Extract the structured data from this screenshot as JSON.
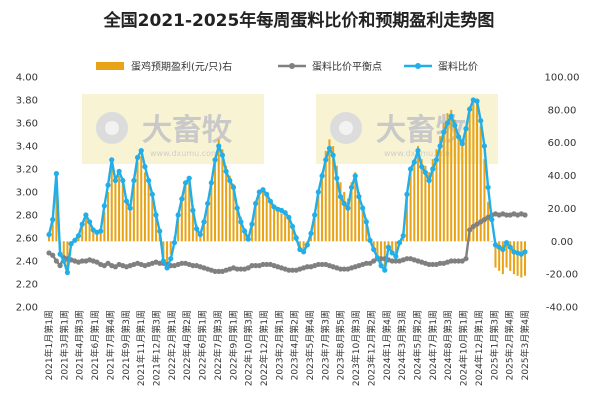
{
  "chart_data": {
    "type": "bar+line",
    "title": "全国2021-2025年每周蛋料比价和预期盈利走势图",
    "watermark": {
      "brand": "大畜牧",
      "site": "www.dxumu.com"
    },
    "colors": {
      "profit": "#E8A317",
      "breakeven": "#808080",
      "ratio": "#22AEE8"
    },
    "legend": [
      {
        "key": "profit",
        "label": "蛋鸡预期盈利(元/只)右",
        "marker": "bar"
      },
      {
        "key": "breakeven",
        "label": "蛋料比价平衡点",
        "marker": "line-dot"
      },
      {
        "key": "ratio",
        "label": "蛋料比价",
        "marker": "line-dot"
      }
    ],
    "y_left": {
      "min": 2.0,
      "max": 4.0,
      "step": 0.2,
      "ticks": [
        "2.00",
        "2.20",
        "2.40",
        "2.60",
        "2.80",
        "3.00",
        "3.20",
        "3.40",
        "3.60",
        "3.80",
        "4.00"
      ]
    },
    "y_right": {
      "min": -40,
      "max": 100,
      "step": 20,
      "ticks": [
        "-40.00",
        "-20.00",
        "0.00",
        "20.00",
        "40.00",
        "60.00",
        "80.00",
        "100.00"
      ]
    },
    "x_labels": [
      "2021年1月第1周",
      "2021年3月第1周",
      "2021年4月第3周",
      "2021年6月第1周",
      "2021年7月第4周",
      "2021年9月第3周",
      "2021年11月第1周",
      "2021年12月第3周",
      "2022年2月第1周",
      "2022年4月第2周",
      "2022年6月第1周",
      "2022年7月第3周",
      "2022年9月第1周",
      "2022年10月第3周",
      "2022年12月第1周",
      "2023年2月第1周",
      "2023年4月第2周",
      "2023年5月第4周",
      "2023年7月第3周",
      "2023年8月第5周",
      "2023年10月第3周",
      "2023年12月第2周",
      "2024年1月第4周",
      "2024年3月第3周",
      "2024年5月第2周",
      "2024年7月第1周",
      "2024年8月第3周",
      "2024年10月第1周",
      "2024年12月第1周",
      "2025年1月第3周",
      "2025年2月第4周",
      "2025年3月第4周"
    ],
    "ratio": [
      2.63,
      2.76,
      3.16,
      2.46,
      2.4,
      2.3,
      2.55,
      2.58,
      2.62,
      2.72,
      2.8,
      2.74,
      2.67,
      2.65,
      2.66,
      2.88,
      3.06,
      3.28,
      3.1,
      3.18,
      3.1,
      2.92,
      2.86,
      3.1,
      3.3,
      3.36,
      3.22,
      3.1,
      2.98,
      2.8,
      2.66,
      2.4,
      2.34,
      2.42,
      2.56,
      2.8,
      2.94,
      3.08,
      3.12,
      2.84,
      2.68,
      2.63,
      2.74,
      2.9,
      3.08,
      3.28,
      3.4,
      3.32,
      3.18,
      3.1,
      3.04,
      2.86,
      2.74,
      2.66,
      2.59,
      2.72,
      2.9,
      3.0,
      3.02,
      2.98,
      2.92,
      2.87,
      2.85,
      2.84,
      2.82,
      2.78,
      2.7,
      2.6,
      2.5,
      2.48,
      2.54,
      2.64,
      2.8,
      3.0,
      3.14,
      3.28,
      3.38,
      3.32,
      3.12,
      2.96,
      2.9,
      2.86,
      3.04,
      3.14,
      2.96,
      2.86,
      2.74,
      2.58,
      2.5,
      2.43,
      2.36,
      2.32,
      2.52,
      2.47,
      2.44,
      2.56,
      2.62,
      2.98,
      3.2,
      3.26,
      3.36,
      3.22,
      3.17,
      3.1,
      3.2,
      3.28,
      3.4,
      3.52,
      3.6,
      3.66,
      3.58,
      3.48,
      3.42,
      3.55,
      3.72,
      3.8,
      3.79,
      3.62,
      3.4,
      3.04,
      2.76,
      2.54,
      2.52,
      2.5,
      2.56,
      2.52,
      2.48,
      2.47,
      2.46,
      2.48
    ],
    "breakeven": [
      2.47,
      2.45,
      2.4,
      2.36,
      2.43,
      2.42,
      2.41,
      2.4,
      2.39,
      2.4,
      2.4,
      2.41,
      2.4,
      2.39,
      2.37,
      2.36,
      2.38,
      2.36,
      2.35,
      2.37,
      2.36,
      2.35,
      2.36,
      2.37,
      2.38,
      2.37,
      2.36,
      2.37,
      2.38,
      2.39,
      2.38,
      2.38,
      2.37,
      2.36,
      2.36,
      2.37,
      2.38,
      2.38,
      2.37,
      2.36,
      2.36,
      2.35,
      2.34,
      2.33,
      2.32,
      2.31,
      2.31,
      2.31,
      2.32,
      2.33,
      2.34,
      2.33,
      2.33,
      2.33,
      2.34,
      2.36,
      2.36,
      2.36,
      2.37,
      2.37,
      2.37,
      2.36,
      2.35,
      2.34,
      2.33,
      2.32,
      2.32,
      2.32,
      2.33,
      2.34,
      2.35,
      2.35,
      2.36,
      2.37,
      2.37,
      2.37,
      2.36,
      2.35,
      2.34,
      2.33,
      2.33,
      2.33,
      2.34,
      2.35,
      2.36,
      2.37,
      2.38,
      2.38,
      2.4,
      2.42,
      2.42,
      2.42,
      2.41,
      2.4,
      2.4,
      2.4,
      2.41,
      2.42,
      2.42,
      2.41,
      2.4,
      2.39,
      2.38,
      2.37,
      2.37,
      2.37,
      2.38,
      2.38,
      2.39,
      2.4,
      2.4,
      2.4,
      2.4,
      2.42,
      2.67,
      2.7,
      2.72,
      2.74,
      2.76,
      2.78,
      2.8,
      2.81,
      2.8,
      2.81,
      2.8,
      2.8,
      2.81,
      2.8,
      2.81,
      2.8
    ],
    "profit": [
      5,
      12,
      30,
      -8,
      -12,
      -16,
      -2,
      0,
      3,
      10,
      15,
      12,
      8,
      6,
      7,
      18,
      30,
      45,
      38,
      40,
      36,
      25,
      20,
      35,
      48,
      52,
      42,
      36,
      28,
      15,
      5,
      -10,
      -14,
      -8,
      3,
      15,
      25,
      35,
      38,
      22,
      10,
      5,
      12,
      22,
      36,
      50,
      62,
      56,
      46,
      40,
      35,
      22,
      15,
      8,
      4,
      12,
      24,
      30,
      32,
      28,
      24,
      20,
      18,
      17,
      16,
      14,
      10,
      4,
      -4,
      -6,
      -2,
      5,
      14,
      30,
      42,
      55,
      62,
      58,
      46,
      36,
      30,
      26,
      36,
      42,
      30,
      22,
      14,
      2,
      -6,
      -10,
      -14,
      -16,
      -4,
      -6,
      -8,
      0,
      6,
      30,
      45,
      50,
      58,
      50,
      46,
      42,
      50,
      56,
      64,
      72,
      78,
      80,
      74,
      66,
      62,
      70,
      82,
      86,
      84,
      70,
      50,
      24,
      0,
      -16,
      -18,
      -20,
      -16,
      -18,
      -20,
      -21,
      -22,
      -21
    ]
  }
}
